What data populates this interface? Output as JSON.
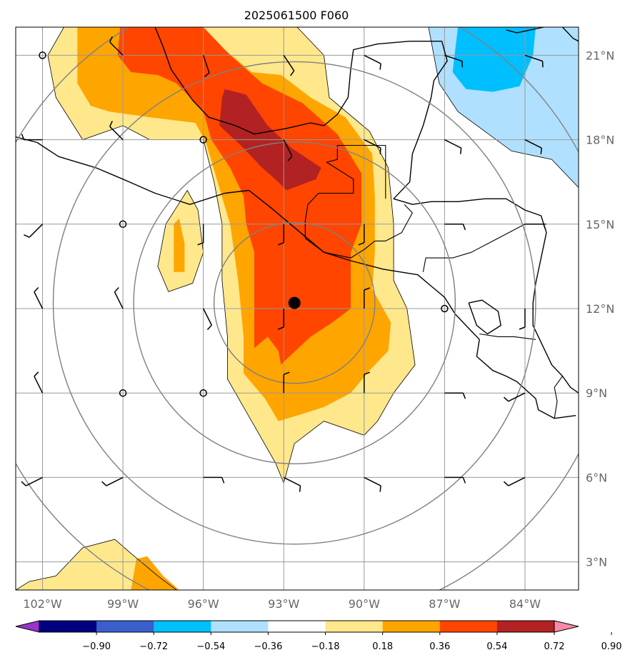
{
  "title": "2025061500 F060",
  "map": {
    "lon_range": [
      -103.0,
      -82.0
    ],
    "lat_range": [
      2.0,
      22.0
    ],
    "lon_ticks": [
      {
        "value": -102,
        "label": "102°W"
      },
      {
        "value": -99,
        "label": "99°W"
      },
      {
        "value": -96,
        "label": "96°W"
      },
      {
        "value": -93,
        "label": "93°W"
      },
      {
        "value": -90,
        "label": "90°W"
      },
      {
        "value": -87,
        "label": "87°W"
      },
      {
        "value": -84,
        "label": "84°W"
      }
    ],
    "lat_ticks": [
      {
        "value": 3,
        "label": "3°N"
      },
      {
        "value": 6,
        "label": "6°N"
      },
      {
        "value": 9,
        "label": "9°N"
      },
      {
        "value": 12,
        "label": "12°N"
      },
      {
        "value": 15,
        "label": "15°N"
      },
      {
        "value": 18,
        "label": "18°N"
      },
      {
        "value": 21,
        "label": "21°N"
      }
    ],
    "grid": true,
    "center_marker": {
      "lon": -92.6,
      "lat": 12.2
    },
    "range_rings_deg": [
      3,
      6,
      9,
      12
    ]
  },
  "colorbar": {
    "tick_labels": [
      "−0.90",
      "−0.72",
      "−0.54",
      "−0.36",
      "−0.18",
      "0.18",
      "0.36",
      "0.54",
      "0.72",
      "0.90"
    ],
    "colors": [
      "#9933cc",
      "#000080",
      "#3a5fcd",
      "#00bfff",
      "#b0e0ff",
      "#ffffff",
      "#ffe88c",
      "#ffa500",
      "#ff4500",
      "#b22222",
      "#ff88aa"
    ],
    "extend": "both"
  },
  "field_colors": {
    "pos_1": "#ffe88c",
    "pos_2": "#ffa500",
    "pos_3": "#ff4500",
    "pos_4": "#b22222",
    "neg_1": "#b0e0ff",
    "neg_2": "#00bfff"
  },
  "wind_barbs": [
    {
      "lon": -102,
      "lat": 21,
      "calm": true
    },
    {
      "lon": -99,
      "lat": 21,
      "u": 1,
      "v": -1
    },
    {
      "lon": -96,
      "lat": 21,
      "u": -1,
      "v": 3
    },
    {
      "lon": -93,
      "lat": 21,
      "u": -2,
      "v": 3
    },
    {
      "lon": -90,
      "lat": 21,
      "u": -2,
      "v": 1
    },
    {
      "lon": -87,
      "lat": 21,
      "u": -3,
      "v": 1
    },
    {
      "lon": -84,
      "lat": 21,
      "u": -3,
      "v": 1
    },
    {
      "lon": -102,
      "lat": 18,
      "u": 2,
      "v": 0
    },
    {
      "lon": -99,
      "lat": 18,
      "u": 1,
      "v": -1
    },
    {
      "lon": -96,
      "lat": 18,
      "calm": true
    },
    {
      "lon": -93,
      "lat": 18,
      "u": -1,
      "v": 2
    },
    {
      "lon": -90,
      "lat": 18,
      "u": -2,
      "v": 1
    },
    {
      "lon": -87,
      "lat": 18,
      "u": -2,
      "v": 1
    },
    {
      "lon": -84,
      "lat": 18,
      "u": -2,
      "v": 1
    },
    {
      "lon": -102,
      "lat": 15,
      "u": 1,
      "v": 1
    },
    {
      "lon": -99,
      "lat": 15,
      "calm": true
    },
    {
      "lon": -96,
      "lat": 15,
      "u": 0,
      "v": 2
    },
    {
      "lon": -93,
      "lat": 15,
      "u": 0,
      "v": 2
    },
    {
      "lon": -90,
      "lat": 15,
      "u": 0,
      "v": 2
    },
    {
      "lon": -87,
      "lat": 15,
      "u": -2,
      "v": 0
    },
    {
      "lon": -84,
      "lat": 15,
      "u": -2,
      "v": 0
    },
    {
      "lon": -102,
      "lat": 12,
      "u": 1,
      "v": -2
    },
    {
      "lon": -99,
      "lat": 12,
      "u": 1,
      "v": -2
    },
    {
      "lon": -96,
      "lat": 12,
      "u": -1,
      "v": 2
    },
    {
      "lon": -93,
      "lat": 12,
      "u": 0,
      "v": 2
    },
    {
      "lon": -90,
      "lat": 12,
      "u": 0,
      "v": -2
    },
    {
      "lon": -87,
      "lat": 12,
      "calm": true
    },
    {
      "lon": -84,
      "lat": 12,
      "u": 0,
      "v": 2
    },
    {
      "lon": -102,
      "lat": 9,
      "u": 1,
      "v": -2
    },
    {
      "lon": -99,
      "lat": 9,
      "calm": true
    },
    {
      "lon": -96,
      "lat": 9,
      "calm": true
    },
    {
      "lon": -93,
      "lat": 9,
      "u": 0,
      "v": -2
    },
    {
      "lon": -90,
      "lat": 9,
      "u": 0,
      "v": -2
    },
    {
      "lon": -87,
      "lat": 9,
      "u": -2,
      "v": 0
    },
    {
      "lon": -84,
      "lat": 9,
      "u": 2,
      "v": 1
    },
    {
      "lon": -102,
      "lat": 6,
      "u": 2,
      "v": 1
    },
    {
      "lon": -99,
      "lat": 6,
      "u": 2,
      "v": 1
    },
    {
      "lon": -96,
      "lat": 6,
      "u": -2,
      "v": 0
    },
    {
      "lon": -93,
      "lat": 6,
      "u": -2,
      "v": 1
    },
    {
      "lon": -90,
      "lat": 6,
      "u": -2,
      "v": 1
    },
    {
      "lon": -87,
      "lat": 6,
      "u": -2,
      "v": 0
    },
    {
      "lon": -84,
      "lat": 6,
      "u": 2,
      "v": 1
    }
  ],
  "shaded_regions": [
    {
      "level": "pos_1",
      "points": [
        [
          -101.2,
          22
        ],
        [
          -92.5,
          22
        ],
        [
          -91.5,
          21
        ],
        [
          -91.3,
          19.5
        ],
        [
          -89.8,
          18.3
        ],
        [
          -89.1,
          17
        ],
        [
          -88.9,
          15
        ],
        [
          -88.9,
          13
        ],
        [
          -88.4,
          12
        ],
        [
          -88.1,
          10
        ],
        [
          -88.9,
          9
        ],
        [
          -89.5,
          8
        ],
        [
          -90,
          7.5
        ],
        [
          -91.5,
          8
        ],
        [
          -92.6,
          7.2
        ],
        [
          -93,
          5.8
        ],
        [
          -93.3,
          6.5
        ],
        [
          -94.5,
          8.5
        ],
        [
          -95.1,
          9.5
        ],
        [
          -95.1,
          11
        ],
        [
          -95.3,
          13
        ],
        [
          -95.3,
          15
        ],
        [
          -95.6,
          16.5
        ],
        [
          -96,
          18
        ],
        [
          -97,
          18
        ],
        [
          -98,
          18
        ],
        [
          -99,
          18.5
        ],
        [
          -100.5,
          18
        ],
        [
          -101.5,
          19.5
        ],
        [
          -101.8,
          21
        ],
        [
          -101.2,
          22
        ]
      ]
    },
    {
      "level": "pos_1",
      "points": [
        [
          -96.6,
          16.2
        ],
        [
          -96.2,
          15.5
        ],
        [
          -96,
          14
        ],
        [
          -96.4,
          12.9
        ],
        [
          -97.3,
          12.6
        ],
        [
          -97.7,
          13.5
        ],
        [
          -97.4,
          15
        ],
        [
          -96.6,
          16.2
        ]
      ]
    },
    {
      "level": "pos_1",
      "points": [
        [
          -103,
          2
        ],
        [
          -97,
          2
        ],
        [
          -97.7,
          2.5
        ],
        [
          -98.7,
          3.3
        ],
        [
          -99.3,
          3.8
        ],
        [
          -100.5,
          3.5
        ],
        [
          -101.5,
          2.5
        ],
        [
          -102.5,
          2.3
        ],
        [
          -103,
          2
        ]
      ]
    },
    {
      "level": "pos_2",
      "points": [
        [
          -100.7,
          22
        ],
        [
          -96.2,
          22
        ],
        [
          -95.2,
          21.2
        ],
        [
          -94.2,
          20.4
        ],
        [
          -93.1,
          20.3
        ],
        [
          -92,
          19.5
        ],
        [
          -90.7,
          18.8
        ],
        [
          -89.7,
          17.5
        ],
        [
          -89.6,
          16
        ],
        [
          -89.6,
          14
        ],
        [
          -89.7,
          12.7
        ],
        [
          -89,
          11.5
        ],
        [
          -89.1,
          10.5
        ],
        [
          -89.8,
          9.8
        ],
        [
          -90.5,
          9
        ],
        [
          -91.5,
          8.5
        ],
        [
          -92.5,
          8.2
        ],
        [
          -93.2,
          8
        ],
        [
          -93.7,
          8.8
        ],
        [
          -94.5,
          9.7
        ],
        [
          -94.5,
          11
        ],
        [
          -94.7,
          13
        ],
        [
          -95,
          15
        ],
        [
          -95.5,
          16.6
        ],
        [
          -95.9,
          17.9
        ],
        [
          -96.3,
          18.6
        ],
        [
          -98,
          18.8
        ],
        [
          -99.5,
          19
        ],
        [
          -100.2,
          19.2
        ],
        [
          -100.7,
          20
        ],
        [
          -100.7,
          22
        ]
      ]
    },
    {
      "level": "pos_2",
      "points": [
        [
          -96.9,
          15.2
        ],
        [
          -96.7,
          14.3
        ],
        [
          -96.7,
          13.3
        ],
        [
          -97.1,
          13.3
        ],
        [
          -97.1,
          15
        ],
        [
          -96.9,
          15.2
        ]
      ]
    },
    {
      "level": "pos_2",
      "points": [
        [
          -98.7,
          2
        ],
        [
          -96.9,
          2
        ],
        [
          -97.5,
          2.5
        ],
        [
          -98.1,
          3.2
        ],
        [
          -98.5,
          3.1
        ],
        [
          -98.7,
          2
        ]
      ]
    },
    {
      "level": "pos_3",
      "points": [
        [
          -99.1,
          22
        ],
        [
          -96,
          22
        ],
        [
          -95,
          21
        ],
        [
          -93.8,
          20
        ],
        [
          -92.3,
          19.3
        ],
        [
          -91,
          18.2
        ],
        [
          -90.1,
          16.8
        ],
        [
          -90.1,
          15
        ],
        [
          -90.5,
          14
        ],
        [
          -90.5,
          12
        ],
        [
          -91.2,
          11.5
        ],
        [
          -92,
          11
        ],
        [
          -92.9,
          10.2
        ],
        [
          -93.1,
          10
        ],
        [
          -93.2,
          10.5
        ],
        [
          -93.6,
          11
        ],
        [
          -94.1,
          10.6
        ],
        [
          -94.1,
          12
        ],
        [
          -94.1,
          14
        ],
        [
          -94.4,
          15
        ],
        [
          -94.5,
          16
        ],
        [
          -95,
          17
        ],
        [
          -95.7,
          18
        ],
        [
          -96,
          19
        ],
        [
          -97,
          20
        ],
        [
          -97.7,
          20.3
        ],
        [
          -98.7,
          20.4
        ],
        [
          -99.2,
          21
        ],
        [
          -99.1,
          22
        ]
      ]
    },
    {
      "level": "pos_4",
      "points": [
        [
          -95.2,
          19.8
        ],
        [
          -94.4,
          19.6
        ],
        [
          -93.6,
          18.5
        ],
        [
          -92.7,
          17.7
        ],
        [
          -91.6,
          17
        ],
        [
          -91.8,
          16.6
        ],
        [
          -92.9,
          16.2
        ],
        [
          -93.2,
          16.5
        ],
        [
          -93.8,
          17
        ],
        [
          -94.6,
          17.8
        ],
        [
          -95.4,
          18.5
        ],
        [
          -95.3,
          19.5
        ],
        [
          -95.2,
          19.8
        ]
      ]
    },
    {
      "level": "neg_1",
      "points": [
        [
          -87.6,
          22
        ],
        [
          -82,
          22
        ],
        [
          -82,
          16.3
        ],
        [
          -83,
          17.3
        ],
        [
          -84.5,
          17.6
        ],
        [
          -85.5,
          18.3
        ],
        [
          -86.5,
          19
        ],
        [
          -87.2,
          20
        ],
        [
          -87.6,
          22
        ]
      ]
    },
    {
      "level": "neg_2",
      "points": [
        [
          -86.5,
          22
        ],
        [
          -83.6,
          22
        ],
        [
          -83.7,
          21
        ],
        [
          -84.2,
          19.9
        ],
        [
          -85.2,
          19.7
        ],
        [
          -86.2,
          19.8
        ],
        [
          -86.7,
          20.4
        ],
        [
          -86.5,
          22
        ]
      ]
    }
  ],
  "coastlines": [
    [
      [
        -103,
        18.1
      ],
      [
        -102.2,
        17.9
      ],
      [
        -101.4,
        17.4
      ],
      [
        -100,
        17
      ],
      [
        -99,
        16.6
      ],
      [
        -97.8,
        16.1
      ],
      [
        -96.5,
        15.7
      ],
      [
        -95.2,
        16.1
      ],
      [
        -94.3,
        16.2
      ],
      [
        -93.5,
        15.6
      ],
      [
        -92.5,
        14.8
      ],
      [
        -91.5,
        14
      ],
      [
        -90.5,
        13.7
      ],
      [
        -89.3,
        13.4
      ],
      [
        -88,
        13.2
      ],
      [
        -87.5,
        12.8
      ],
      [
        -87,
        12.4
      ],
      [
        -86.6,
        11.8
      ],
      [
        -86,
        11.2
      ],
      [
        -85.7,
        10.9
      ],
      [
        -85.8,
        10.3
      ],
      [
        -85.2,
        9.8
      ],
      [
        -84.7,
        9.6
      ],
      [
        -84.3,
        9.4
      ],
      [
        -83.6,
        8.8
      ],
      [
        -83.5,
        8.4
      ],
      [
        -82.9,
        8.1
      ],
      [
        -82.1,
        8.2
      ]
    ],
    [
      [
        -97.8,
        22
      ],
      [
        -97.5,
        21.3
      ],
      [
        -97.2,
        20.5
      ],
      [
        -96.4,
        19.4
      ],
      [
        -95.8,
        18.8
      ],
      [
        -94.8,
        18.5
      ],
      [
        -94.1,
        18.2
      ],
      [
        -92.9,
        18.4
      ],
      [
        -92,
        18.6
      ],
      [
        -91.5,
        18.5
      ],
      [
        -91,
        18.9
      ],
      [
        -90.6,
        19.5
      ],
      [
        -90.5,
        20.5
      ],
      [
        -90.4,
        21.2
      ],
      [
        -89.5,
        21.4
      ],
      [
        -88.3,
        21.5
      ],
      [
        -87.1,
        21.5
      ],
      [
        -86.9,
        20.8
      ],
      [
        -87.4,
        20.1
      ],
      [
        -87.5,
        19.5
      ],
      [
        -87.8,
        18.5
      ],
      [
        -88.2,
        17.5
      ],
      [
        -88.3,
        16.5
      ],
      [
        -88.9,
        15.9
      ],
      [
        -88.2,
        15.7
      ],
      [
        -87.5,
        15.8
      ],
      [
        -86.5,
        15.8
      ],
      [
        -85.5,
        15.9
      ],
      [
        -84.7,
        15.9
      ],
      [
        -84,
        15.5
      ],
      [
        -83.4,
        15.3
      ],
      [
        -83.2,
        14.7
      ],
      [
        -83.4,
        13.8
      ],
      [
        -83.6,
        12.9
      ],
      [
        -83.7,
        12.2
      ],
      [
        -83.7,
        11.4
      ],
      [
        -83.4,
        10.8
      ],
      [
        -83,
        10
      ],
      [
        -82.6,
        9.6
      ],
      [
        -82.3,
        9.2
      ],
      [
        -82,
        9
      ]
    ],
    [
      [
        -86.1,
        12.2
      ],
      [
        -85.6,
        12.3
      ],
      [
        -85,
        11.9
      ],
      [
        -84.9,
        11.4
      ],
      [
        -85.4,
        11.1
      ],
      [
        -85.8,
        11.4
      ],
      [
        -86.1,
        12.2
      ]
    ],
    [
      [
        -84.7,
        21.9
      ],
      [
        -84.3,
        21.8
      ],
      [
        -83.8,
        21.9
      ],
      [
        -83.3,
        22
      ]
    ],
    [
      [
        -82.6,
        22
      ],
      [
        -82.2,
        21.6
      ],
      [
        -82,
        21.5
      ]
    ]
  ],
  "borders": [
    [
      [
        -92.2,
        14.5
      ],
      [
        -92.2,
        15.1
      ],
      [
        -92.1,
        15.7
      ],
      [
        -91.7,
        16.1
      ],
      [
        -90.4,
        16.1
      ],
      [
        -90.4,
        16.6
      ],
      [
        -91.4,
        17.2
      ],
      [
        -91,
        17.3
      ],
      [
        -91,
        17.8
      ],
      [
        -89.2,
        17.8
      ],
      [
        -89.2,
        17
      ],
      [
        -89.2,
        15.9
      ]
    ],
    [
      [
        -92.2,
        14.5
      ],
      [
        -91.5,
        14
      ],
      [
        -90.5,
        13.8
      ],
      [
        -90,
        14.1
      ],
      [
        -89.6,
        14.4
      ],
      [
        -89.2,
        14.4
      ],
      [
        -88.6,
        14.7
      ],
      [
        -88.2,
        15.4
      ],
      [
        -88.5,
        15.7
      ]
    ],
    [
      [
        -87.8,
        13.3
      ],
      [
        -87.7,
        13.8
      ],
      [
        -86.7,
        13.8
      ],
      [
        -86,
        14
      ],
      [
        -85.4,
        14.3
      ],
      [
        -84.6,
        14.7
      ],
      [
        -84,
        15
      ],
      [
        -83.2,
        15
      ]
    ],
    [
      [
        -85.7,
        11.1
      ],
      [
        -85,
        11
      ],
      [
        -84.4,
        11
      ],
      [
        -83.6,
        10.9
      ]
    ],
    [
      [
        -82.9,
        8.1
      ],
      [
        -82.8,
        8.7
      ],
      [
        -82.9,
        9.2
      ],
      [
        -82.6,
        9.6
      ]
    ]
  ]
}
